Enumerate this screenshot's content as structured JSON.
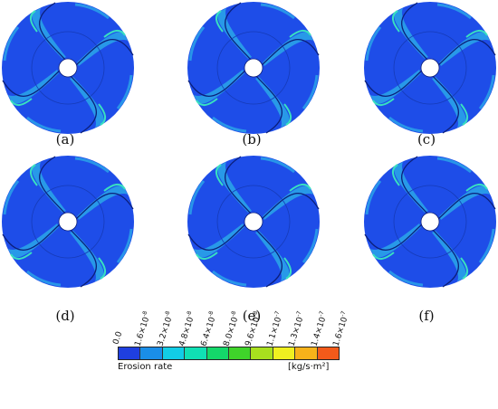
{
  "panels": [
    {
      "id": "a",
      "caption": "(a)"
    },
    {
      "id": "b",
      "caption": "(b)"
    },
    {
      "id": "c",
      "caption": "(c)"
    },
    {
      "id": "d",
      "caption": "(d)"
    },
    {
      "id": "e",
      "caption": "(e)"
    },
    {
      "id": "f",
      "caption": "(f)"
    }
  ],
  "legend": {
    "title": "Erosion rate",
    "unit": "[kg/s·m²]",
    "ticks": [
      {
        "mant": "0.0",
        "exp": ""
      },
      {
        "mant": "1.6×10",
        "exp": "-8"
      },
      {
        "mant": "3.2×10",
        "exp": "-8"
      },
      {
        "mant": "4.8×10",
        "exp": "-8"
      },
      {
        "mant": "6.4×10",
        "exp": "-8"
      },
      {
        "mant": "8.0×10",
        "exp": "-8"
      },
      {
        "mant": "9.6×10",
        "exp": "-8"
      },
      {
        "mant": "1.1×10",
        "exp": "-7"
      },
      {
        "mant": "1.3×10",
        "exp": "-7"
      },
      {
        "mant": "1.4×10",
        "exp": "-7"
      },
      {
        "mant": "1.6×10",
        "exp": "-7"
      }
    ],
    "colors": [
      "#1f3fe0",
      "#1a8ee8",
      "#12cde6",
      "#10e0b4",
      "#14d86a",
      "#3fd42a",
      "#a8e01e",
      "#f0f020",
      "#f7b21a",
      "#f25a1a"
    ]
  },
  "colors": {
    "impeller_base": "#1e4de8",
    "erosion_light": "#2aa7e8",
    "erosion_hot": "#38e0c0",
    "hub": "#ffffff"
  }
}
